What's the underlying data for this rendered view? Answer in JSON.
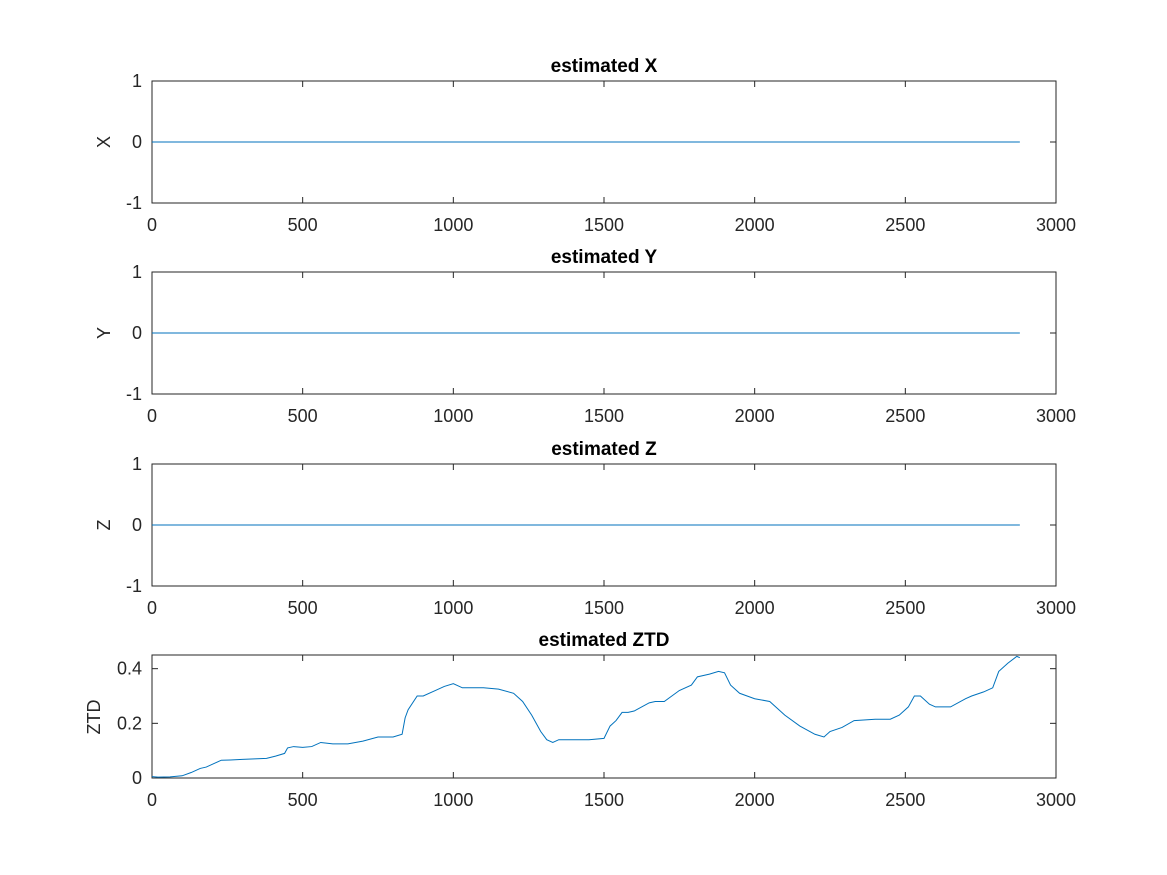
{
  "chart_data": [
    {
      "type": "line",
      "title": "estimated X",
      "xlabel": "",
      "ylabel": "X",
      "xlim": [
        0,
        3000
      ],
      "ylim": [
        -1,
        1
      ],
      "xticks": [
        "0",
        "500",
        "1000",
        "1500",
        "2000",
        "2500",
        "3000"
      ],
      "yticks": [
        "-1",
        "0",
        "1"
      ],
      "x": [
        0,
        2880
      ],
      "y": [
        0,
        0
      ],
      "color": "#0072BD"
    },
    {
      "type": "line",
      "title": "estimated Y",
      "xlabel": "",
      "ylabel": "Y",
      "xlim": [
        0,
        3000
      ],
      "ylim": [
        -1,
        1
      ],
      "xticks": [
        "0",
        "500",
        "1000",
        "1500",
        "2000",
        "2500",
        "3000"
      ],
      "yticks": [
        "-1",
        "0",
        "1"
      ],
      "x": [
        0,
        2880
      ],
      "y": [
        0,
        0
      ],
      "color": "#0072BD"
    },
    {
      "type": "line",
      "title": "estimated Z",
      "xlabel": "",
      "ylabel": "Z",
      "xlim": [
        0,
        3000
      ],
      "ylim": [
        -1,
        1
      ],
      "xticks": [
        "0",
        "500",
        "1000",
        "1500",
        "2000",
        "2500",
        "3000"
      ],
      "yticks": [
        "-1",
        "0",
        "1"
      ],
      "x": [
        0,
        2880
      ],
      "y": [
        0,
        0
      ],
      "color": "#0072BD"
    },
    {
      "type": "line",
      "title": "estimated ZTD",
      "xlabel": "",
      "ylabel": "ZTD",
      "xlim": [
        0,
        3000
      ],
      "ylim": [
        0,
        0.45
      ],
      "xticks": [
        "0",
        "500",
        "1000",
        "1500",
        "2000",
        "2500",
        "3000"
      ],
      "yticks": [
        "0",
        "0.2",
        "0.4"
      ],
      "yticks_values": [
        0,
        0.2,
        0.4
      ],
      "x": [
        0,
        20,
        60,
        100,
        130,
        160,
        180,
        210,
        230,
        260,
        300,
        340,
        380,
        410,
        440,
        450,
        470,
        500,
        530,
        560,
        600,
        650,
        700,
        750,
        800,
        830,
        840,
        850,
        880,
        900,
        940,
        970,
        1000,
        1030,
        1060,
        1100,
        1150,
        1200,
        1230,
        1260,
        1290,
        1310,
        1330,
        1350,
        1400,
        1450,
        1500,
        1520,
        1540,
        1560,
        1580,
        1600,
        1650,
        1670,
        1700,
        1750,
        1790,
        1810,
        1850,
        1880,
        1900,
        1920,
        1950,
        2000,
        2050,
        2100,
        2150,
        2200,
        2230,
        2250,
        2290,
        2330,
        2400,
        2450,
        2480,
        2510,
        2530,
        2550,
        2580,
        2600,
        2650,
        2700,
        2720,
        2760,
        2790,
        2810,
        2840,
        2870,
        2880
      ],
      "y": [
        0.005,
        0.003,
        0.004,
        0.008,
        0.02,
        0.035,
        0.04,
        0.055,
        0.065,
        0.066,
        0.068,
        0.07,
        0.072,
        0.08,
        0.09,
        0.11,
        0.115,
        0.112,
        0.115,
        0.13,
        0.125,
        0.125,
        0.135,
        0.15,
        0.15,
        0.16,
        0.22,
        0.25,
        0.3,
        0.3,
        0.32,
        0.335,
        0.345,
        0.33,
        0.33,
        0.33,
        0.325,
        0.31,
        0.28,
        0.23,
        0.17,
        0.14,
        0.13,
        0.14,
        0.14,
        0.14,
        0.145,
        0.19,
        0.21,
        0.24,
        0.24,
        0.245,
        0.275,
        0.28,
        0.28,
        0.32,
        0.34,
        0.37,
        0.38,
        0.39,
        0.385,
        0.34,
        0.31,
        0.29,
        0.28,
        0.23,
        0.19,
        0.16,
        0.15,
        0.17,
        0.185,
        0.21,
        0.215,
        0.215,
        0.23,
        0.26,
        0.3,
        0.3,
        0.27,
        0.26,
        0.26,
        0.29,
        0.3,
        0.315,
        0.33,
        0.39,
        0.42,
        0.445,
        0.44
      ],
      "color": "#0072BD"
    }
  ]
}
